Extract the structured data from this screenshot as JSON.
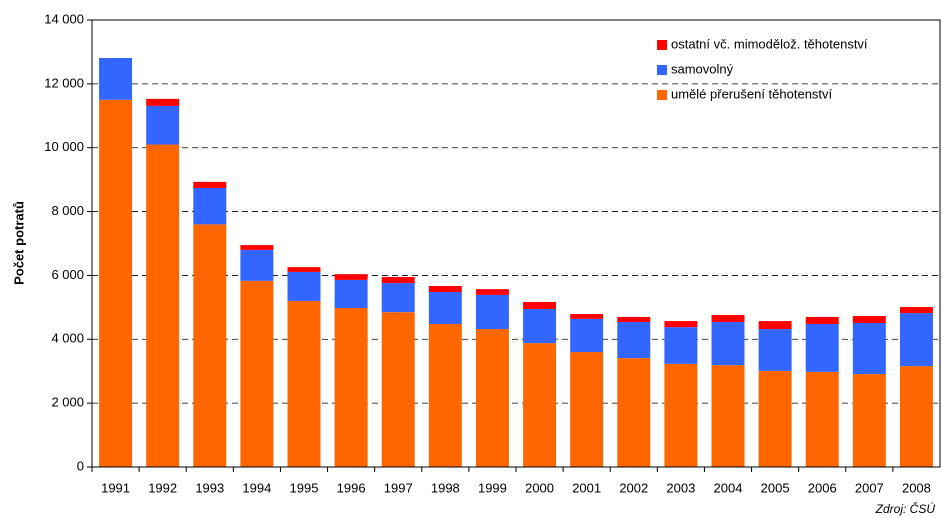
{
  "chart_data": {
    "type": "stacked_bar",
    "y_label": "Počet potratů",
    "source": "Zdroj: ČSÚ",
    "categories": [
      "1991",
      "1992",
      "1993",
      "1994",
      "1995",
      "1996",
      "1997",
      "1998",
      "1999",
      "2000",
      "2001",
      "2002",
      "2003",
      "2004",
      "2005",
      "2006",
      "2007",
      "2008"
    ],
    "series": [
      {
        "name": "umělé přerušení těhotenství",
        "color": "#ff6600",
        "values": [
          11500,
          10100,
          7600,
          5830,
          5200,
          4980,
          4850,
          4480,
          4320,
          3880,
          3600,
          3410,
          3230,
          3190,
          3010,
          2980,
          2910,
          3160
        ]
      },
      {
        "name": "samovolný",
        "color": "#3366ff",
        "values": [
          1310,
          1210,
          1140,
          970,
          910,
          880,
          910,
          1000,
          1070,
          1070,
          1040,
          1130,
          1150,
          1350,
          1310,
          1500,
          1600,
          1660
        ]
      },
      {
        "name": "ostatní vč. mimodělož. těhotenství",
        "color": "#ff0000",
        "values": [
          0,
          220,
          190,
          150,
          150,
          180,
          190,
          190,
          180,
          220,
          150,
          160,
          190,
          220,
          250,
          220,
          220,
          190
        ]
      }
    ],
    "ylim": [
      0,
      14000
    ],
    "yticks": [
      0,
      {
        "value": 2000,
        "label": "2 000"
      },
      {
        "value": 4000,
        "label": "4 000"
      },
      {
        "value": 6000,
        "label": "6 000"
      },
      {
        "value": 8000,
        "label": "8 000"
      },
      {
        "value": 10000,
        "label": "10 000"
      },
      {
        "value": 12000,
        "label": "12 000"
      },
      {
        "value": 14000,
        "label": "14 000"
      }
    ],
    "grid": true,
    "legend": "top-right"
  }
}
